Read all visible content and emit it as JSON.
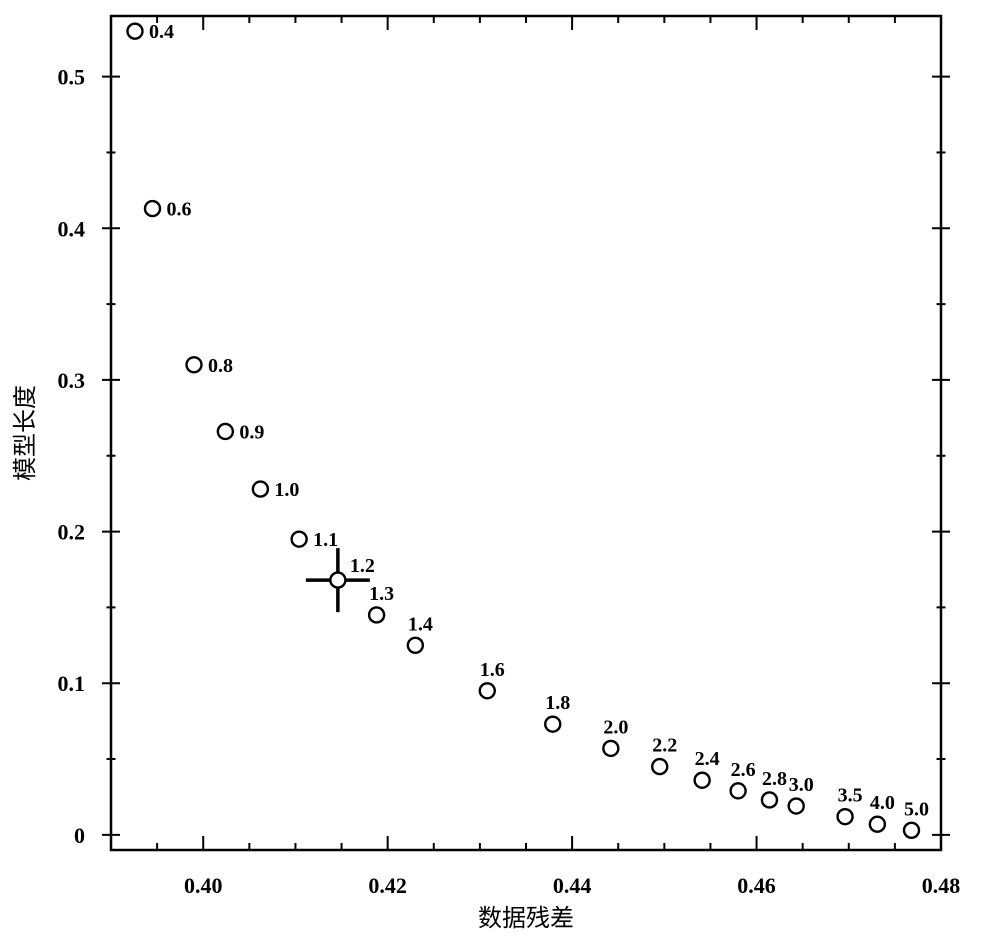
{
  "chart_data": {
    "type": "scatter",
    "xlabel": "数据残差",
    "ylabel": "模型长度",
    "xlim": [
      0.39,
      0.48
    ],
    "ylim": [
      -0.01,
      0.54
    ],
    "x_ticks": [
      {
        "value": 0.4,
        "label": "0.40"
      },
      {
        "value": 0.42,
        "label": "0.42"
      },
      {
        "value": 0.44,
        "label": "0.44"
      },
      {
        "value": 0.46,
        "label": "0.46"
      },
      {
        "value": 0.48,
        "label": "0.48"
      }
    ],
    "y_ticks": [
      {
        "value": 0.0,
        "label": "0"
      },
      {
        "value": 0.1,
        "label": "0.1"
      },
      {
        "value": 0.2,
        "label": "0.2"
      },
      {
        "value": 0.3,
        "label": "0.3"
      },
      {
        "value": 0.4,
        "label": "0.4"
      },
      {
        "value": 0.5,
        "label": "0.5"
      }
    ],
    "grid": false,
    "legend": "none",
    "selected_point": "1.2",
    "points": [
      {
        "label": "0.4",
        "x": 0.3926,
        "y": 0.53,
        "label_pos": "right"
      },
      {
        "label": "0.6",
        "x": 0.3945,
        "y": 0.413,
        "label_pos": "right"
      },
      {
        "label": "0.8",
        "x": 0.399,
        "y": 0.31,
        "label_pos": "right"
      },
      {
        "label": "0.9",
        "x": 0.4024,
        "y": 0.266,
        "label_pos": "right"
      },
      {
        "label": "1.0",
        "x": 0.4062,
        "y": 0.228,
        "label_pos": "right"
      },
      {
        "label": "1.1",
        "x": 0.4104,
        "y": 0.195,
        "label_pos": "right"
      },
      {
        "label": "1.2",
        "x": 0.4146,
        "y": 0.168,
        "label_pos": "above-right"
      },
      {
        "label": "1.3",
        "x": 0.4188,
        "y": 0.145,
        "label_pos": "above"
      },
      {
        "label": "1.4",
        "x": 0.423,
        "y": 0.125,
        "label_pos": "above"
      },
      {
        "label": "1.6",
        "x": 0.4308,
        "y": 0.095,
        "label_pos": "above"
      },
      {
        "label": "1.8",
        "x": 0.4379,
        "y": 0.073,
        "label_pos": "above"
      },
      {
        "label": "2.0",
        "x": 0.4442,
        "y": 0.057,
        "label_pos": "above"
      },
      {
        "label": "2.2",
        "x": 0.4495,
        "y": 0.045,
        "label_pos": "above"
      },
      {
        "label": "2.4",
        "x": 0.4541,
        "y": 0.036,
        "label_pos": "above"
      },
      {
        "label": "2.6",
        "x": 0.458,
        "y": 0.029,
        "label_pos": "above"
      },
      {
        "label": "2.8",
        "x": 0.4614,
        "y": 0.023,
        "label_pos": "above"
      },
      {
        "label": "3.0",
        "x": 0.4643,
        "y": 0.019,
        "label_pos": "above"
      },
      {
        "label": "3.5",
        "x": 0.4696,
        "y": 0.012,
        "label_pos": "above"
      },
      {
        "label": "4.0",
        "x": 0.4731,
        "y": 0.007,
        "label_pos": "above"
      },
      {
        "label": "5.0",
        "x": 0.4768,
        "y": 0.003,
        "label_pos": "above"
      }
    ]
  }
}
